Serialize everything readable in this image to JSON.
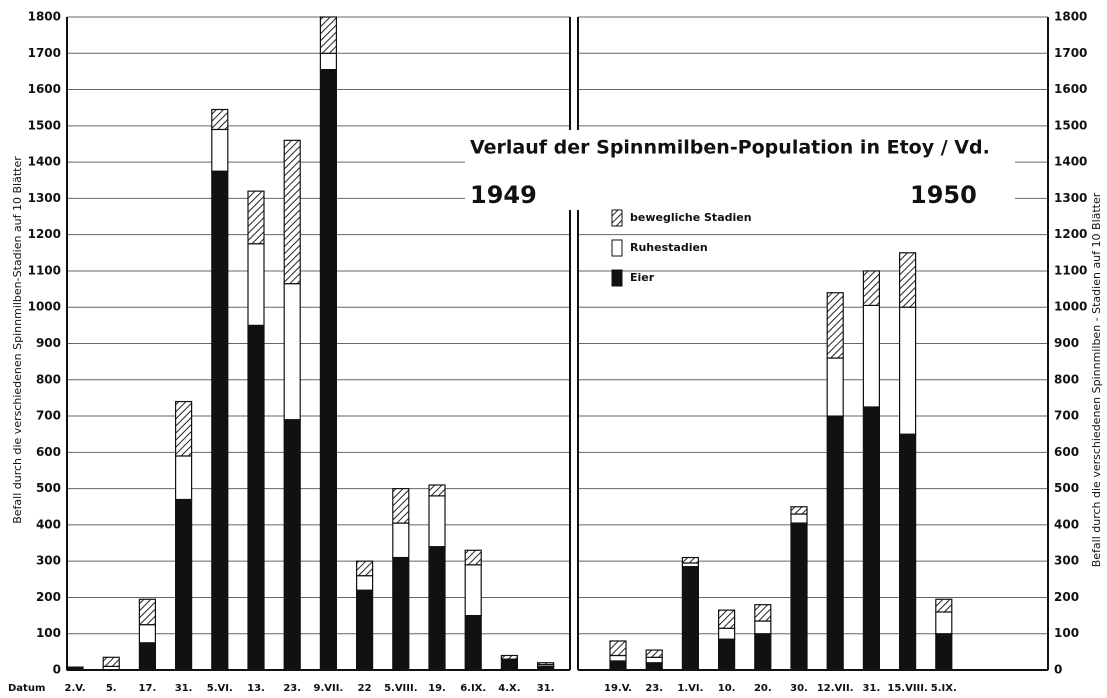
{
  "chart_data": [
    {
      "type": "bar",
      "stacked": true,
      "title": "Verlauf der Spinnmilben-Population in Etoy / Vd.",
      "subtitle": "1949",
      "ylabel": "Befall durch die verschiedenen Spinnmilben-Stadien auf 10 Blätter",
      "xlabel": "Datum",
      "categories": [
        "2.V.",
        "5.",
        "17.",
        "31.",
        "5.VI.",
        "13.",
        "23.",
        "9.VII.",
        "22",
        "5.VIII.",
        "19.",
        "6.IX.",
        "4.X.",
        "31."
      ],
      "series": [
        {
          "name": "bewegliche Stadien",
          "color": "#222222",
          "pattern": "hatch",
          "values": [
            0,
            25,
            70,
            150,
            55,
            145,
            395,
            100,
            40,
            95,
            30,
            40,
            10,
            5
          ]
        },
        {
          "name": "Ruhestadien",
          "color": "#ffffff",
          "values": [
            0,
            10,
            50,
            120,
            115,
            225,
            375,
            45,
            40,
            95,
            140,
            140,
            0,
            5
          ]
        },
        {
          "name": "Eier",
          "color": "#111111",
          "values": [
            8,
            0,
            75,
            470,
            1375,
            950,
            690,
            1655,
            220,
            310,
            340,
            150,
            30,
            10
          ]
        }
      ],
      "ylim": [
        0,
        1800
      ],
      "yticks": [
        0,
        100,
        200,
        300,
        400,
        500,
        600,
        700,
        800,
        900,
        1000,
        1100,
        1200,
        1300,
        1400,
        1500,
        1600,
        1700,
        1800
      ],
      "grid": true
    },
    {
      "type": "bar",
      "stacked": true,
      "subtitle": "1950",
      "ylabel": "Befall durch die verschiedenen Spinnmilben - Stadien auf 10 Blätter",
      "categories": [
        "19.V.",
        "23.",
        "1.VI.",
        "10.",
        "20.",
        "30.",
        "12.VII.",
        "31.",
        "15.VIII.",
        "5.IX."
      ],
      "series": [
        {
          "name": "bewegliche Stadien",
          "color": "#222222",
          "pattern": "hatch",
          "values": [
            40,
            20,
            15,
            50,
            45,
            20,
            180,
            95,
            150,
            35
          ]
        },
        {
          "name": "Ruhestadien",
          "color": "#ffffff",
          "values": [
            15,
            15,
            10,
            30,
            35,
            25,
            160,
            280,
            350,
            60
          ]
        },
        {
          "name": "Eier",
          "color": "#111111",
          "values": [
            25,
            20,
            285,
            85,
            100,
            405,
            700,
            725,
            650,
            100
          ]
        }
      ],
      "ylim": [
        0,
        1800
      ],
      "yticks": [
        0,
        100,
        200,
        300,
        400,
        500,
        600,
        700,
        800,
        900,
        1000,
        1100,
        1200,
        1300,
        1400,
        1500,
        1600,
        1700,
        1800
      ],
      "grid": true,
      "legend": "upper-left"
    }
  ]
}
